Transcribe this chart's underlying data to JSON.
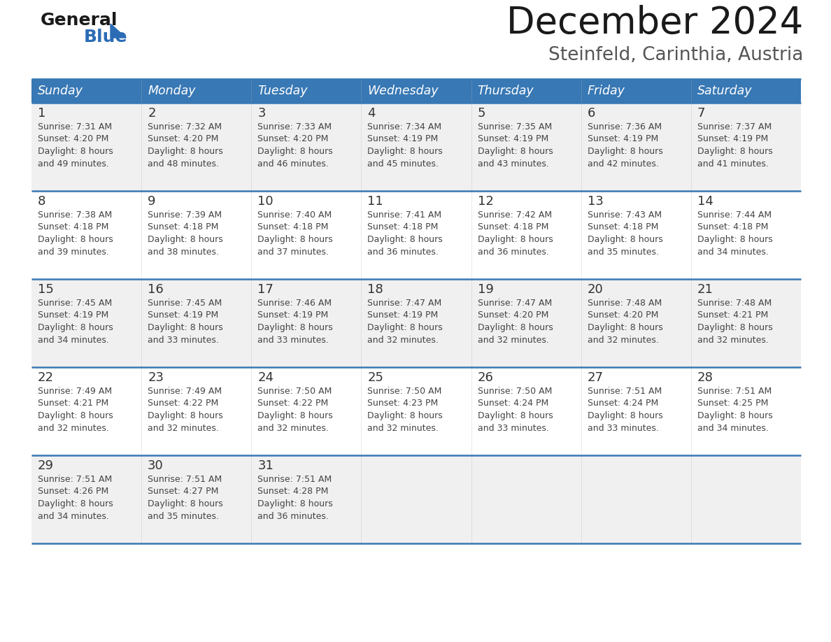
{
  "title": "December 2024",
  "subtitle": "Steinfeld, Carinthia, Austria",
  "days_of_week": [
    "Sunday",
    "Monday",
    "Tuesday",
    "Wednesday",
    "Thursday",
    "Friday",
    "Saturday"
  ],
  "header_bg": "#3878b4",
  "header_text": "#ffffff",
  "row_bg_odd": "#f0f0f0",
  "row_bg_even": "#ffffff",
  "divider_color": "#3878b4",
  "text_color": "#444444",
  "day_num_color": "#333333",
  "logo_general_color": "#1a1a1a",
  "logo_blue_color": "#2b6cb5",
  "logo_triangle_color": "#2b6cb5",
  "title_color": "#1a1a1a",
  "subtitle_color": "#555555",
  "weeks": [
    [
      {
        "day": 1,
        "sunrise": "7:31 AM",
        "sunset": "4:20 PM",
        "daylight_hours": 8,
        "daylight_minutes": 49
      },
      {
        "day": 2,
        "sunrise": "7:32 AM",
        "sunset": "4:20 PM",
        "daylight_hours": 8,
        "daylight_minutes": 48
      },
      {
        "day": 3,
        "sunrise": "7:33 AM",
        "sunset": "4:20 PM",
        "daylight_hours": 8,
        "daylight_minutes": 46
      },
      {
        "day": 4,
        "sunrise": "7:34 AM",
        "sunset": "4:19 PM",
        "daylight_hours": 8,
        "daylight_minutes": 45
      },
      {
        "day": 5,
        "sunrise": "7:35 AM",
        "sunset": "4:19 PM",
        "daylight_hours": 8,
        "daylight_minutes": 43
      },
      {
        "day": 6,
        "sunrise": "7:36 AM",
        "sunset": "4:19 PM",
        "daylight_hours": 8,
        "daylight_minutes": 42
      },
      {
        "day": 7,
        "sunrise": "7:37 AM",
        "sunset": "4:19 PM",
        "daylight_hours": 8,
        "daylight_minutes": 41
      }
    ],
    [
      {
        "day": 8,
        "sunrise": "7:38 AM",
        "sunset": "4:18 PM",
        "daylight_hours": 8,
        "daylight_minutes": 39
      },
      {
        "day": 9,
        "sunrise": "7:39 AM",
        "sunset": "4:18 PM",
        "daylight_hours": 8,
        "daylight_minutes": 38
      },
      {
        "day": 10,
        "sunrise": "7:40 AM",
        "sunset": "4:18 PM",
        "daylight_hours": 8,
        "daylight_minutes": 37
      },
      {
        "day": 11,
        "sunrise": "7:41 AM",
        "sunset": "4:18 PM",
        "daylight_hours": 8,
        "daylight_minutes": 36
      },
      {
        "day": 12,
        "sunrise": "7:42 AM",
        "sunset": "4:18 PM",
        "daylight_hours": 8,
        "daylight_minutes": 36
      },
      {
        "day": 13,
        "sunrise": "7:43 AM",
        "sunset": "4:18 PM",
        "daylight_hours": 8,
        "daylight_minutes": 35
      },
      {
        "day": 14,
        "sunrise": "7:44 AM",
        "sunset": "4:18 PM",
        "daylight_hours": 8,
        "daylight_minutes": 34
      }
    ],
    [
      {
        "day": 15,
        "sunrise": "7:45 AM",
        "sunset": "4:19 PM",
        "daylight_hours": 8,
        "daylight_minutes": 34
      },
      {
        "day": 16,
        "sunrise": "7:45 AM",
        "sunset": "4:19 PM",
        "daylight_hours": 8,
        "daylight_minutes": 33
      },
      {
        "day": 17,
        "sunrise": "7:46 AM",
        "sunset": "4:19 PM",
        "daylight_hours": 8,
        "daylight_minutes": 33
      },
      {
        "day": 18,
        "sunrise": "7:47 AM",
        "sunset": "4:19 PM",
        "daylight_hours": 8,
        "daylight_minutes": 32
      },
      {
        "day": 19,
        "sunrise": "7:47 AM",
        "sunset": "4:20 PM",
        "daylight_hours": 8,
        "daylight_minutes": 32
      },
      {
        "day": 20,
        "sunrise": "7:48 AM",
        "sunset": "4:20 PM",
        "daylight_hours": 8,
        "daylight_minutes": 32
      },
      {
        "day": 21,
        "sunrise": "7:48 AM",
        "sunset": "4:21 PM",
        "daylight_hours": 8,
        "daylight_minutes": 32
      }
    ],
    [
      {
        "day": 22,
        "sunrise": "7:49 AM",
        "sunset": "4:21 PM",
        "daylight_hours": 8,
        "daylight_minutes": 32
      },
      {
        "day": 23,
        "sunrise": "7:49 AM",
        "sunset": "4:22 PM",
        "daylight_hours": 8,
        "daylight_minutes": 32
      },
      {
        "day": 24,
        "sunrise": "7:50 AM",
        "sunset": "4:22 PM",
        "daylight_hours": 8,
        "daylight_minutes": 32
      },
      {
        "day": 25,
        "sunrise": "7:50 AM",
        "sunset": "4:23 PM",
        "daylight_hours": 8,
        "daylight_minutes": 32
      },
      {
        "day": 26,
        "sunrise": "7:50 AM",
        "sunset": "4:24 PM",
        "daylight_hours": 8,
        "daylight_minutes": 33
      },
      {
        "day": 27,
        "sunrise": "7:51 AM",
        "sunset": "4:24 PM",
        "daylight_hours": 8,
        "daylight_minutes": 33
      },
      {
        "day": 28,
        "sunrise": "7:51 AM",
        "sunset": "4:25 PM",
        "daylight_hours": 8,
        "daylight_minutes": 34
      }
    ],
    [
      {
        "day": 29,
        "sunrise": "7:51 AM",
        "sunset": "4:26 PM",
        "daylight_hours": 8,
        "daylight_minutes": 34
      },
      {
        "day": 30,
        "sunrise": "7:51 AM",
        "sunset": "4:27 PM",
        "daylight_hours": 8,
        "daylight_minutes": 35
      },
      {
        "day": 31,
        "sunrise": "7:51 AM",
        "sunset": "4:28 PM",
        "daylight_hours": 8,
        "daylight_minutes": 36
      },
      null,
      null,
      null,
      null
    ]
  ]
}
